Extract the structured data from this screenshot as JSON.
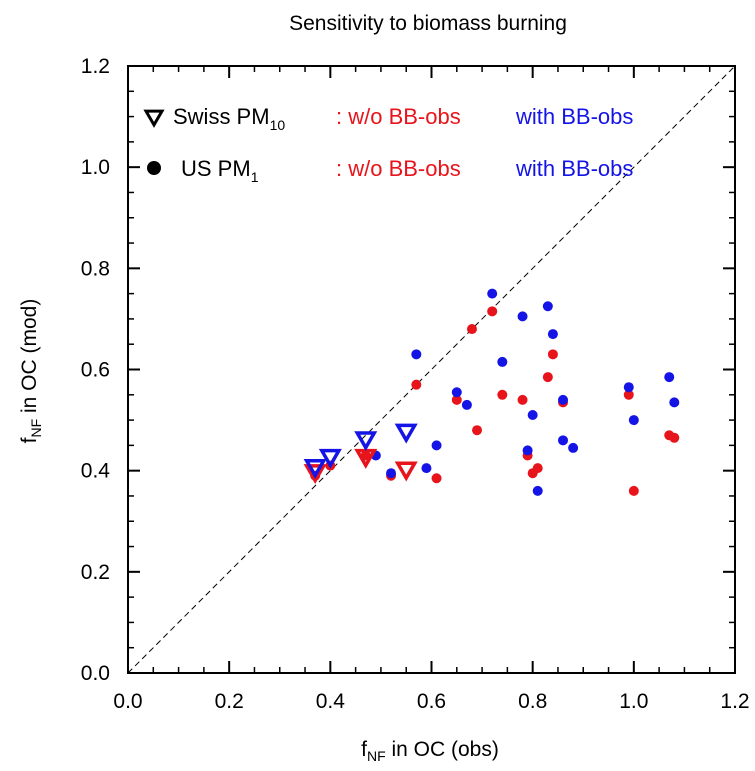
{
  "chart_data": {
    "type": "scatter",
    "title": "Sensitivity to biomass burning",
    "xlabel": {
      "base": "f",
      "sub": "NF",
      "rest": " in OC (obs)"
    },
    "ylabel": {
      "base": "f",
      "sub": "NF",
      "rest": " in OC (mod)"
    },
    "xlim": [
      0,
      1.2
    ],
    "ylim": [
      0,
      1.2
    ],
    "xticks": [
      "0.0",
      "0.2",
      "0.4",
      "0.6",
      "0.8",
      "1.0",
      "1.2"
    ],
    "yticks": [
      "0.0",
      "0.2",
      "0.4",
      "0.6",
      "0.8",
      "1.0",
      "1.2"
    ],
    "tick_values": [
      0,
      0.2,
      0.4,
      0.6,
      0.8,
      1.0,
      1.2
    ],
    "one_to_one_line": true,
    "grid": false,
    "legend": {
      "placement": "top-left",
      "rows": [
        {
          "marker": "triangle-down",
          "label": "Swiss PM",
          "sub": "10",
          "red_text": ": w/o BB-obs",
          "blue_text": "with BB-obs"
        },
        {
          "marker": "circle",
          "label": "US PM",
          "sub": "1",
          "red_text": ": w/o BB-obs",
          "blue_text": "with BB-obs"
        }
      ]
    },
    "colors": {
      "without_bb": "#e8141b",
      "with_bb": "#1414e6",
      "axis": "#000000"
    },
    "series": [
      {
        "marker": "circle",
        "color": "#e8141b",
        "points": [
          [
            0.37,
            0.39
          ],
          [
            0.4,
            0.41
          ],
          [
            0.47,
            0.43
          ],
          [
            0.52,
            0.39
          ],
          [
            0.57,
            0.57
          ],
          [
            0.61,
            0.385
          ],
          [
            0.65,
            0.54
          ],
          [
            0.68,
            0.68
          ],
          [
            0.69,
            0.48
          ],
          [
            0.72,
            0.715
          ],
          [
            0.74,
            0.55
          ],
          [
            0.78,
            0.54
          ],
          [
            0.79,
            0.43
          ],
          [
            0.8,
            0.395
          ],
          [
            0.81,
            0.405
          ],
          [
            0.83,
            0.585
          ],
          [
            0.84,
            0.63
          ],
          [
            0.86,
            0.535
          ],
          [
            0.99,
            0.55
          ],
          [
            1.0,
            0.36
          ],
          [
            1.07,
            0.47
          ],
          [
            1.08,
            0.465
          ]
        ]
      },
      {
        "marker": "circle",
        "color": "#1414e6",
        "points": [
          [
            0.49,
            0.43
          ],
          [
            0.52,
            0.395
          ],
          [
            0.57,
            0.63
          ],
          [
            0.59,
            0.405
          ],
          [
            0.61,
            0.45
          ],
          [
            0.65,
            0.555
          ],
          [
            0.67,
            0.53
          ],
          [
            0.72,
            0.75
          ],
          [
            0.74,
            0.615
          ],
          [
            0.78,
            0.705
          ],
          [
            0.79,
            0.44
          ],
          [
            0.8,
            0.51
          ],
          [
            0.81,
            0.36
          ],
          [
            0.83,
            0.725
          ],
          [
            0.84,
            0.67
          ],
          [
            0.86,
            0.46
          ],
          [
            0.86,
            0.54
          ],
          [
            0.88,
            0.445
          ],
          [
            0.99,
            0.565
          ],
          [
            1.0,
            0.5
          ],
          [
            1.07,
            0.585
          ],
          [
            1.08,
            0.535
          ]
        ]
      },
      {
        "marker": "triangle-down",
        "color": "#e8141b",
        "points": [
          [
            0.37,
            0.395
          ],
          [
            0.47,
            0.425
          ],
          [
            0.55,
            0.4
          ]
        ]
      },
      {
        "marker": "triangle-down",
        "color": "#1414e6",
        "points": [
          [
            0.37,
            0.405
          ],
          [
            0.4,
            0.425
          ],
          [
            0.47,
            0.46
          ],
          [
            0.55,
            0.475
          ]
        ]
      }
    ]
  }
}
